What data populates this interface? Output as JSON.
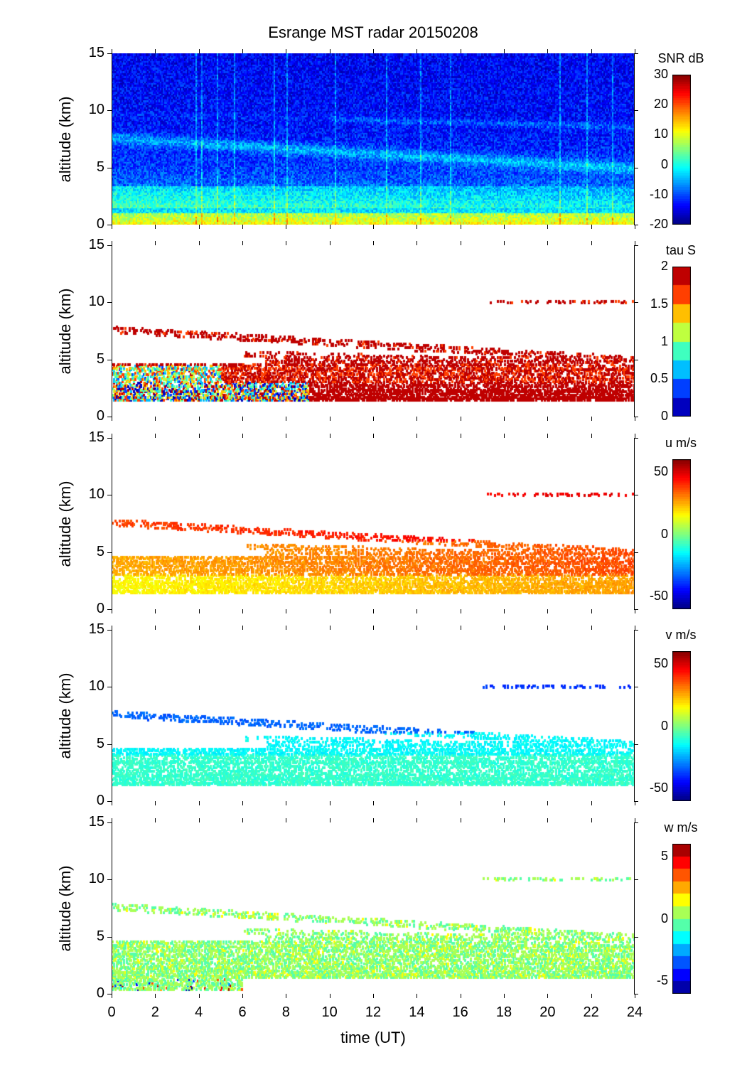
{
  "chart_data": {
    "type": "heatmap",
    "title": "Esrange MST radar 20150208",
    "xlabel": "time (UT)",
    "xlim": [
      0,
      24
    ],
    "xticks": [
      "0",
      "2",
      "4",
      "6",
      "8",
      "10",
      "12",
      "14",
      "16",
      "18",
      "20",
      "22",
      "24"
    ],
    "panels": [
      {
        "id": "snr",
        "ylabel": "altitude (km)",
        "ylim": [
          0,
          15
        ],
        "yticks": [
          "0",
          "5",
          "10",
          "15"
        ],
        "colorbar_label": "SNR dB",
        "clim": [
          -20,
          30
        ],
        "cticks": [
          "30",
          "20",
          "10",
          "0",
          "-10",
          "-20"
        ],
        "cticks_values": [
          30,
          20,
          10,
          0,
          -10,
          -20
        ],
        "levels": 64
      },
      {
        "id": "tau",
        "ylabel": "altitude (km)",
        "ylim": [
          0,
          15
        ],
        "yticks": [
          "0",
          "5",
          "10",
          "15"
        ],
        "colorbar_label": "tau S",
        "clim": [
          0,
          2
        ],
        "cticks": [
          "2",
          "1.5",
          "1",
          "0.5",
          "0"
        ],
        "cticks_values": [
          2,
          1.5,
          1,
          0.5,
          0
        ],
        "levels": 8
      },
      {
        "id": "u",
        "ylabel": "altitude (km)",
        "ylim": [
          0,
          15
        ],
        "yticks": [
          "0",
          "5",
          "10",
          "15"
        ],
        "colorbar_label": "u m/s",
        "clim": [
          -60,
          60
        ],
        "cticks": [
          "50",
          "0",
          "-50"
        ],
        "cticks_values": [
          50,
          0,
          -50
        ],
        "levels": 64
      },
      {
        "id": "v",
        "ylabel": "altitude (km)",
        "ylim": [
          0,
          15
        ],
        "yticks": [
          "0",
          "5",
          "10",
          "15"
        ],
        "colorbar_label": "v m/s",
        "clim": [
          -60,
          60
        ],
        "cticks": [
          "50",
          "0",
          "-50"
        ],
        "cticks_values": [
          50,
          0,
          -50
        ],
        "levels": 64
      },
      {
        "id": "w",
        "ylabel": "altitude (km)",
        "ylim": [
          0,
          15
        ],
        "yticks": [
          "0",
          "5",
          "10",
          "15"
        ],
        "colorbar_label": "w m/s",
        "clim": [
          -6,
          6
        ],
        "cticks": [
          "5",
          "0",
          "-5"
        ],
        "cticks_values": [
          5,
          0,
          -5
        ],
        "levels": 12
      }
    ],
    "colormap": "jet"
  }
}
